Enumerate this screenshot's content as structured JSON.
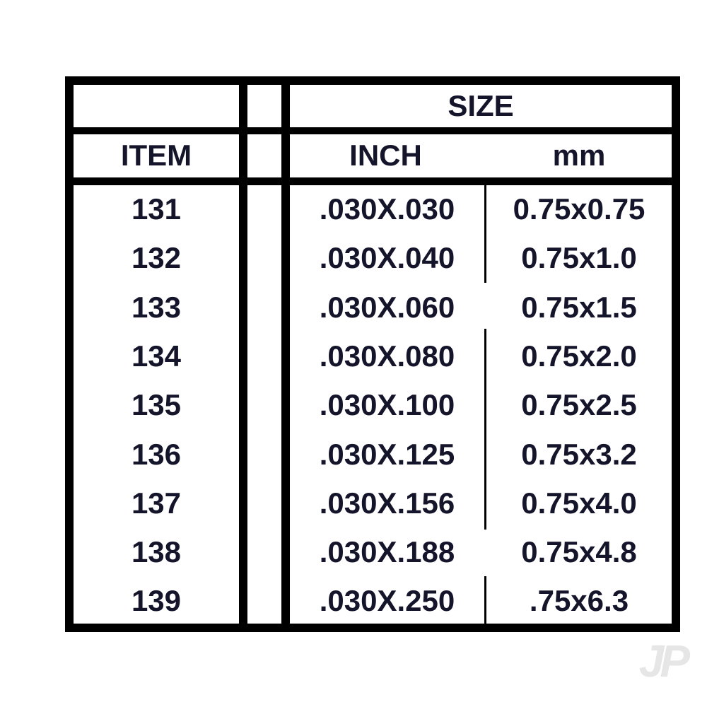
{
  "table": {
    "header_group": "SIZE",
    "columns": {
      "item": "ITEM",
      "inch": "INCH",
      "mm": "mm"
    },
    "rows": [
      {
        "item": "131",
        "inch": ".030X.030",
        "mm": "0.75x0.75"
      },
      {
        "item": "132",
        "inch": ".030X.040",
        "mm": "0.75x1.0"
      },
      {
        "item": "133",
        "inch": ".030X.060",
        "mm": "0.75x1.5"
      },
      {
        "item": "134",
        "inch": ".030X.080",
        "mm": "0.75x2.0"
      },
      {
        "item": "135",
        "inch": ".030X.100",
        "mm": "0.75x2.5"
      },
      {
        "item": "136",
        "inch": ".030X.125",
        "mm": "0.75x3.2"
      },
      {
        "item": "137",
        "inch": ".030X.156",
        "mm": "0.75x4.0"
      },
      {
        "item": "138",
        "inch": ".030X.188",
        "mm": "0.75x4.8"
      },
      {
        "item": "139",
        "inch": ".030X.250",
        "mm": ".75x6.3"
      }
    ]
  },
  "watermark": "JP",
  "colors": {
    "text": "#14142a",
    "border": "#000000"
  }
}
